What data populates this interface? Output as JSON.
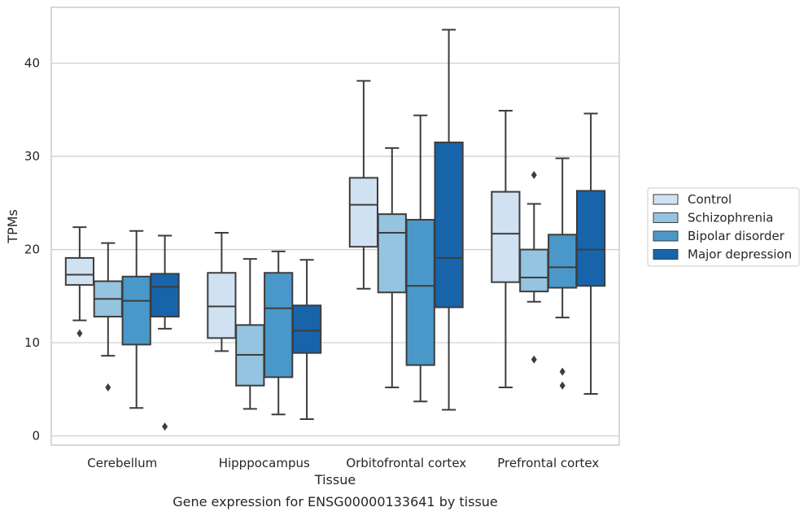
{
  "chart_data": {
    "type": "box",
    "title": "",
    "caption": "Gene expression for ENSG00000133641 by tissue",
    "xlabel": "Tissue",
    "ylabel": "TPMs",
    "ylim": [
      -1,
      46
    ],
    "yticks": [
      0,
      10,
      20,
      30,
      40
    ],
    "grid": "horizontal",
    "legend_position": "right",
    "categories": [
      "Cerebellum",
      "Hipppocampus",
      "Orbitofrontal cortex",
      "Prefrontal cortex"
    ],
    "series": [
      {
        "name": "Control",
        "color": "#d0e1f2",
        "boxes": [
          {
            "whislo": 12.4,
            "q1": 16.2,
            "med": 17.3,
            "q3": 19.1,
            "whishi": 22.4,
            "fliers": [
              11.0
            ]
          },
          {
            "whislo": 9.1,
            "q1": 10.5,
            "med": 13.9,
            "q3": 17.5,
            "whishi": 21.8,
            "fliers": []
          },
          {
            "whislo": 15.8,
            "q1": 20.3,
            "med": 24.8,
            "q3": 27.7,
            "whishi": 38.1,
            "fliers": []
          },
          {
            "whislo": 5.2,
            "q1": 16.5,
            "med": 21.7,
            "q3": 26.2,
            "whishi": 34.9,
            "fliers": []
          }
        ]
      },
      {
        "name": "Schizophrenia",
        "color": "#94c4df",
        "boxes": [
          {
            "whislo": 8.6,
            "q1": 12.8,
            "med": 14.7,
            "q3": 16.6,
            "whishi": 20.7,
            "fliers": [
              5.2
            ]
          },
          {
            "whislo": 2.9,
            "q1": 5.4,
            "med": 8.7,
            "q3": 11.9,
            "whishi": 19.0,
            "fliers": []
          },
          {
            "whislo": 5.2,
            "q1": 15.4,
            "med": 21.8,
            "q3": 23.8,
            "whishi": 30.9,
            "fliers": []
          },
          {
            "whislo": 14.4,
            "q1": 15.5,
            "med": 17.0,
            "q3": 20.0,
            "whishi": 24.9,
            "fliers": [
              28.0,
              8.2
            ]
          }
        ]
      },
      {
        "name": "Bipolar disorder",
        "color": "#4a98c9",
        "boxes": [
          {
            "whislo": 3.0,
            "q1": 9.8,
            "med": 14.5,
            "q3": 17.1,
            "whishi": 22.0,
            "fliers": []
          },
          {
            "whislo": 2.3,
            "q1": 6.3,
            "med": 13.7,
            "q3": 17.5,
            "whishi": 19.8,
            "fliers": []
          },
          {
            "whislo": 3.7,
            "q1": 7.6,
            "med": 16.1,
            "q3": 23.2,
            "whishi": 34.4,
            "fliers": []
          },
          {
            "whislo": 12.7,
            "q1": 15.9,
            "med": 18.1,
            "q3": 21.6,
            "whishi": 29.8,
            "fliers": [
              6.9,
              5.4
            ]
          }
        ]
      },
      {
        "name": "Major depression",
        "color": "#1764ab",
        "boxes": [
          {
            "whislo": 11.5,
            "q1": 12.8,
            "med": 16.0,
            "q3": 17.4,
            "whishi": 21.5,
            "fliers": [
              1.0
            ]
          },
          {
            "whislo": 1.8,
            "q1": 8.9,
            "med": 11.3,
            "q3": 14.0,
            "whishi": 18.9,
            "fliers": []
          },
          {
            "whislo": 2.8,
            "q1": 13.8,
            "med": 19.1,
            "q3": 31.5,
            "whishi": 43.6,
            "fliers": []
          },
          {
            "whislo": 4.5,
            "q1": 16.1,
            "med": 20.0,
            "q3": 26.3,
            "whishi": 34.6,
            "fliers": []
          }
        ]
      }
    ]
  }
}
